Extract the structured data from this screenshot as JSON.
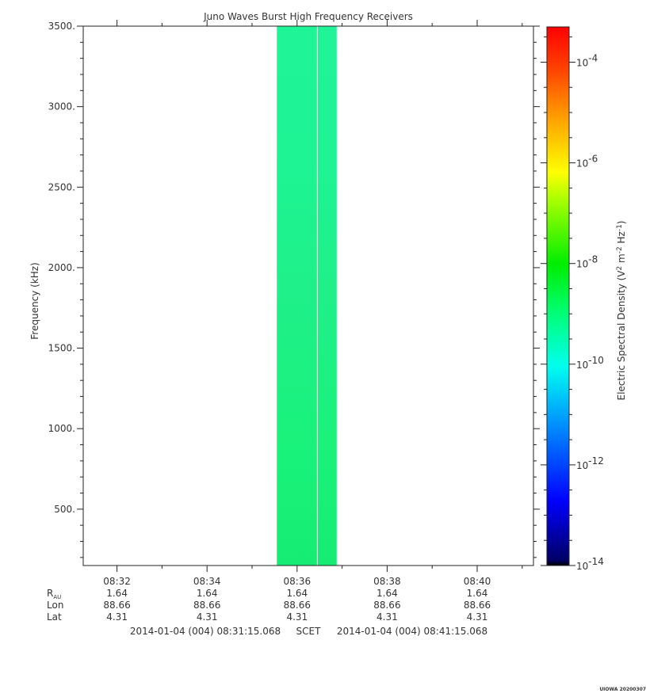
{
  "chart_data": {
    "type": "heatmap",
    "title": "Juno Waves Burst High Frequency Receivers",
    "ylabel": "Frequency (kHz)",
    "ylim": [
      150,
      3500
    ],
    "y_ticks": [
      "500.",
      "1000.",
      "1500.",
      "2000.",
      "2500.",
      "3000.",
      "3500."
    ],
    "y_tick_values": [
      500,
      1000,
      1500,
      2000,
      2500,
      3000,
      3500
    ],
    "x_ticks": [
      "08:32",
      "08:34",
      "08:36",
      "08:38",
      "08:40"
    ],
    "x_tick_minutes": [
      32,
      34,
      36,
      38,
      40
    ],
    "xlim_minutes": [
      31.25,
      41.25
    ],
    "data_block": {
      "t_start_minutes": 35.55,
      "t_end_minutes": 36.88,
      "gap_minutes": 36.45,
      "approx_log10_value": -10
    },
    "colorbar": {
      "label": "Electric Spectral Density (V",
      "label_units": [
        "2",
        " m",
        "-2",
        " Hz",
        "-1",
        ")"
      ],
      "range_log10": [
        -14,
        -3.3
      ],
      "tick_base": "10",
      "tick_exponents": [
        "-4",
        "-6",
        "-8",
        "-10",
        "-12",
        "-14"
      ],
      "tick_values_log10": [
        -4,
        -6,
        -8,
        -10,
        -12,
        -14
      ]
    },
    "ephemeris": {
      "rows": [
        {
          "label": "R",
          "sub": "AU",
          "values": [
            "1.64",
            "1.64",
            "1.64",
            "1.64",
            "1.64"
          ]
        },
        {
          "label": "Lon",
          "values": [
            "88.66",
            "88.66",
            "88.66",
            "88.66",
            "88.66"
          ]
        },
        {
          "label": "Lat",
          "values": [
            "4.31",
            "4.31",
            "4.31",
            "4.31",
            "4.31"
          ]
        }
      ]
    },
    "time_range": {
      "start": "2014-01-04 (004) 08:31:15.068",
      "middle": "SCET",
      "end": "2014-01-04 (004) 08:41:15.068"
    }
  },
  "footer": "UIOWA 20200307"
}
